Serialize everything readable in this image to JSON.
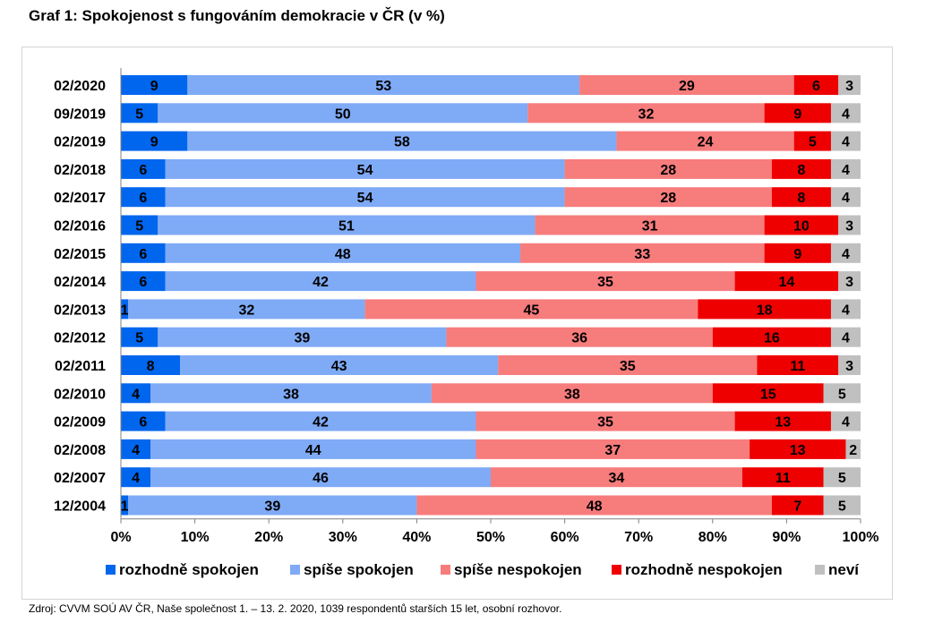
{
  "title": "Graf 1: Spokojenost s fungováním demokracie v ČR (v %)",
  "source": "Zdroj: CVVM SOÚ AV ČR, Naše společnost 1. – 13. 2. 2020, 1039 respondentů starších 15 let, osobní rozhovor.",
  "chart_data": {
    "type": "bar",
    "orientation": "horizontal",
    "stacked": "percent",
    "categories": [
      "02/2020",
      "09/2019",
      "02/2019",
      "02/2018",
      "02/2017",
      "02/2016",
      "02/2015",
      "02/2014",
      "02/2013",
      "02/2012",
      "02/2011",
      "02/2010",
      "02/2009",
      "02/2008",
      "02/2007",
      "12/2004"
    ],
    "series": [
      {
        "name": "rozhodně spokojen",
        "color": "#0066ee",
        "values": [
          9,
          5,
          9,
          6,
          6,
          5,
          6,
          6,
          1,
          5,
          8,
          4,
          6,
          4,
          4,
          1
        ]
      },
      {
        "name": "spíše spokojen",
        "color": "#7faaf5",
        "values": [
          53,
          50,
          58,
          54,
          54,
          51,
          48,
          42,
          32,
          39,
          43,
          38,
          42,
          44,
          46,
          39
        ]
      },
      {
        "name": "spíše nespokojen",
        "color": "#f77c7c",
        "values": [
          29,
          32,
          24,
          28,
          28,
          31,
          33,
          35,
          45,
          36,
          35,
          38,
          35,
          37,
          34,
          48
        ]
      },
      {
        "name": "rozhodně nespokojen",
        "color": "#ee0000",
        "values": [
          6,
          9,
          5,
          8,
          8,
          10,
          9,
          14,
          18,
          16,
          11,
          15,
          13,
          13,
          11,
          7
        ]
      },
      {
        "name": "neví",
        "color": "#c0c0c0",
        "values": [
          3,
          4,
          4,
          4,
          4,
          3,
          4,
          3,
          4,
          4,
          3,
          5,
          4,
          2,
          5,
          5
        ]
      }
    ],
    "xlim": [
      0,
      100
    ],
    "ticks": [
      "0%",
      "10%",
      "20%",
      "30%",
      "40%",
      "50%",
      "60%",
      "70%",
      "80%",
      "90%",
      "100%"
    ],
    "grid": false,
    "legend_position": "bottom"
  }
}
